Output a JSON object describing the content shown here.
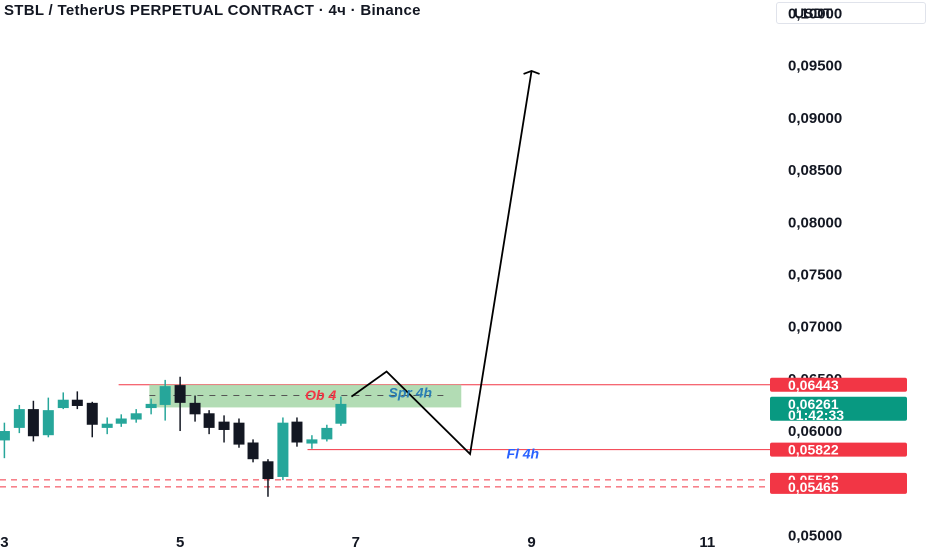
{
  "header": {
    "title": "STBL / TetherUS PERPETUAL CONTRACT · 4ч · Binance",
    "currency": "USDT"
  },
  "colors": {
    "up": "#26a69a",
    "down": "#131722",
    "resistance_line": "#f23645",
    "tag_red": "#f23645",
    "tag_green": "#089981",
    "zone_fill": "#a5d6a7",
    "ob_text": "#f23645",
    "spr_text": "#2a7fb5",
    "fl_text": "#2962ff",
    "projection": "#000000"
  },
  "chart_data": {
    "type": "candlestick",
    "title": "STBL / TetherUS PERPETUAL CONTRACT · 4ч · Binance",
    "y_axis": {
      "range": [
        0.0486,
        0.1013
      ],
      "ticks": [
        "0,10000",
        "0,09500",
        "0,09000",
        "0,08500",
        "0,08000",
        "0,07500",
        "0,07000",
        "0,06500",
        "0,06000",
        "0,05000"
      ],
      "tick_values": [
        0.1,
        0.095,
        0.09,
        0.085,
        0.08,
        0.075,
        0.07,
        0.065,
        0.06,
        0.05
      ]
    },
    "x_axis": {
      "ticks": [
        "3",
        "5",
        "7",
        "9",
        "11"
      ],
      "tick_values": [
        3,
        5,
        7,
        9,
        11
      ],
      "range": [
        2.95,
        11.6
      ]
    },
    "candles": [
      {
        "x": 3.0,
        "o": 0.0591,
        "h": 0.0608,
        "l": 0.0574,
        "c": 0.06
      },
      {
        "x": 3.17,
        "o": 0.0603,
        "h": 0.0625,
        "l": 0.0598,
        "c": 0.0621
      },
      {
        "x": 3.33,
        "o": 0.0621,
        "h": 0.0629,
        "l": 0.059,
        "c": 0.0595
      },
      {
        "x": 3.5,
        "o": 0.0596,
        "h": 0.0632,
        "l": 0.0594,
        "c": 0.062
      },
      {
        "x": 3.67,
        "o": 0.0622,
        "h": 0.0637,
        "l": 0.0621,
        "c": 0.063
      },
      {
        "x": 3.83,
        "o": 0.063,
        "h": 0.0638,
        "l": 0.0621,
        "c": 0.0624
      },
      {
        "x": 4.0,
        "o": 0.0627,
        "h": 0.0628,
        "l": 0.0594,
        "c": 0.0606
      },
      {
        "x": 4.17,
        "o": 0.0603,
        "h": 0.0613,
        "l": 0.0597,
        "c": 0.0607
      },
      {
        "x": 4.33,
        "o": 0.0607,
        "h": 0.0616,
        "l": 0.0604,
        "c": 0.0612
      },
      {
        "x": 4.5,
        "o": 0.0611,
        "h": 0.0621,
        "l": 0.0608,
        "c": 0.0617
      },
      {
        "x": 4.67,
        "o": 0.0622,
        "h": 0.0631,
        "l": 0.0616,
        "c": 0.0626
      },
      {
        "x": 4.83,
        "o": 0.0625,
        "h": 0.0649,
        "l": 0.061,
        "c": 0.0643
      },
      {
        "x": 5.0,
        "o": 0.0644,
        "h": 0.0652,
        "l": 0.06,
        "c": 0.0627
      },
      {
        "x": 5.17,
        "o": 0.0627,
        "h": 0.0634,
        "l": 0.0609,
        "c": 0.0616
      },
      {
        "x": 5.33,
        "o": 0.0617,
        "h": 0.062,
        "l": 0.0597,
        "c": 0.0603
      },
      {
        "x": 5.5,
        "o": 0.0609,
        "h": 0.0615,
        "l": 0.0589,
        "c": 0.0601
      },
      {
        "x": 5.67,
        "o": 0.0608,
        "h": 0.0612,
        "l": 0.0584,
        "c": 0.0587
      },
      {
        "x": 5.83,
        "o": 0.0589,
        "h": 0.0592,
        "l": 0.057,
        "c": 0.0573
      },
      {
        "x": 6.0,
        "o": 0.0571,
        "h": 0.0573,
        "l": 0.0537,
        "c": 0.0554
      },
      {
        "x": 6.17,
        "o": 0.0556,
        "h": 0.0613,
        "l": 0.0553,
        "c": 0.0608
      },
      {
        "x": 6.33,
        "o": 0.0609,
        "h": 0.0613,
        "l": 0.0585,
        "c": 0.0589
      },
      {
        "x": 6.5,
        "o": 0.0588,
        "h": 0.0596,
        "l": 0.0583,
        "c": 0.0592
      },
      {
        "x": 6.67,
        "o": 0.0592,
        "h": 0.0606,
        "l": 0.059,
        "c": 0.0603
      },
      {
        "x": 6.83,
        "o": 0.0607,
        "h": 0.0633,
        "l": 0.0605,
        "c": 0.0626
      }
    ],
    "zone": {
      "x_start": 4.65,
      "x_end": 8.2,
      "y_low": 0.06226,
      "y_high": 0.06443
    },
    "zone_dash": {
      "x_start": 4.65,
      "x_end": 8.0,
      "y": 0.0634
    },
    "horizontal_lines": [
      {
        "y": 0.06443,
        "x_start": 4.3,
        "style": "solid"
      },
      {
        "y": 0.05822,
        "x_start": 6.45,
        "style": "solid"
      },
      {
        "y": 0.05532,
        "x_start": 2.95,
        "style": "dashed"
      },
      {
        "y": 0.05465,
        "x_start": 2.95,
        "style": "dashed"
      }
    ],
    "projection_path": [
      {
        "x": 6.95,
        "y": 0.0633
      },
      {
        "x": 7.35,
        "y": 0.0657
      },
      {
        "x": 8.3,
        "y": 0.0578
      },
      {
        "x": 9.0,
        "y": 0.0945
      }
    ],
    "annotations": [
      {
        "text": "Ob 4",
        "x": 6.6,
        "y": 0.06343,
        "role": "ob"
      },
      {
        "text": "Spr 4h",
        "x": 7.62,
        "y": 0.0637,
        "role": "spr"
      },
      {
        "text": "Fl 4h",
        "x": 8.9,
        "y": 0.05785,
        "role": "fl"
      }
    ],
    "price_tags": [
      {
        "value": 0.06443,
        "lines": [
          "0,06443"
        ],
        "kind": "red"
      },
      {
        "value": 0.06261,
        "lines": [
          "0,06261",
          "01:42:33"
        ],
        "kind": "green"
      },
      {
        "value": 0.05822,
        "lines": [
          "0,05822"
        ],
        "kind": "red"
      },
      {
        "value": 0.05532,
        "lines": [
          "0,05532"
        ],
        "kind": "red"
      },
      {
        "value": 0.05465,
        "lines": [
          "0,05465"
        ],
        "kind": "red"
      }
    ]
  }
}
